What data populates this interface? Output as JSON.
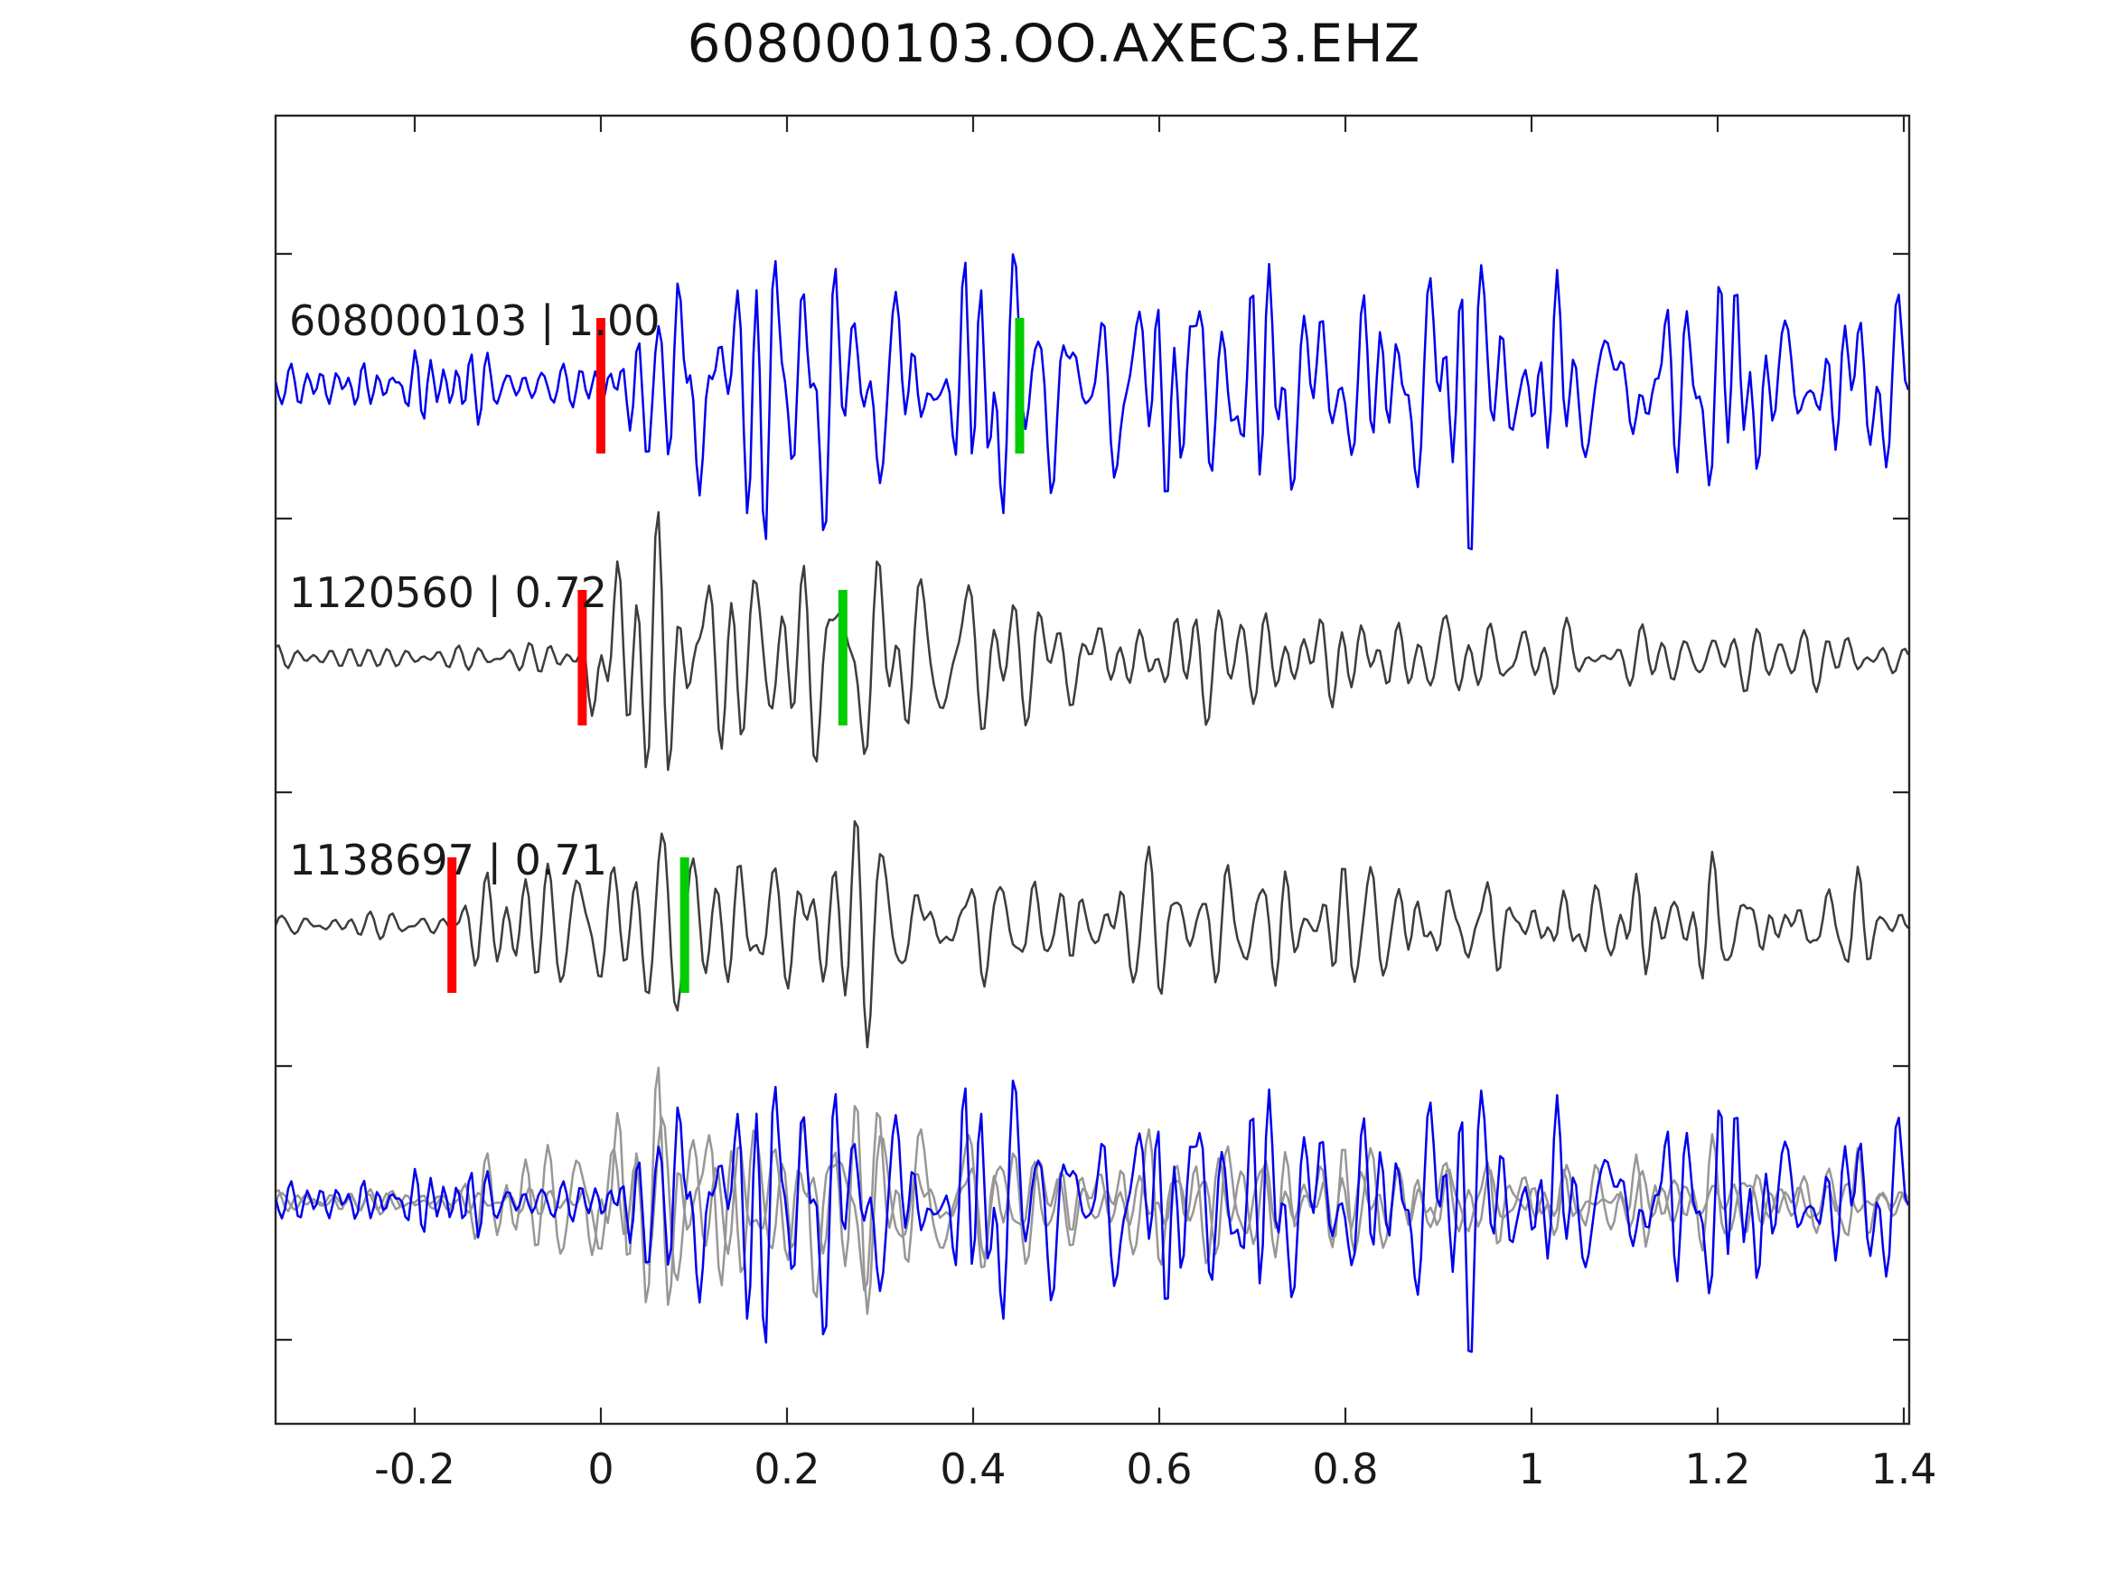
{
  "chart_data": {
    "type": "line",
    "kind": "seismic-waveform-template-match",
    "title": "608000103.OO.AXEC3.EHZ",
    "xlabel": "",
    "ylabel": "",
    "grid": false,
    "legend": "none",
    "xlim": [
      -0.3495,
      1.4058
    ],
    "x_tick_values": [
      -0.2,
      0,
      0.2,
      0.4,
      0.6,
      0.8,
      1,
      1.2,
      1.4
    ],
    "x_tick_labels": [
      "-0.2",
      "0",
      "0.2",
      "0.4",
      "0.6",
      "0.8",
      "1",
      "1.2",
      "1.4"
    ],
    "y_tick_labels": [],
    "colors": {
      "template_blue": "#0000ee",
      "match_gray": "#3d3d3d",
      "overlay_gray": "#979797",
      "pick_red": "#ff0000",
      "pick_green": "#00cc00",
      "axis": "#262626",
      "text": "#1a1a1a"
    },
    "traces": [
      {
        "row": 0,
        "id": "608000103",
        "similarity": "1.00",
        "label": "608000103 | 1.00",
        "color_key": "template_blue",
        "picks": [
          {
            "color_key": "pick_red",
            "t": 0.0
          },
          {
            "color_key": "pick_green",
            "t": 0.45
          }
        ],
        "synth": {
          "seed": 7,
          "dom_freq": 34,
          "pre_amp": 36,
          "burst_amp": 150,
          "onset": 0.0,
          "decay_tau": 1.5,
          "coda_amp": 90
        }
      },
      {
        "row": 1,
        "id": "1120560",
        "similarity": "0.72",
        "label": "1120560 | 0.72",
        "color_key": "match_gray",
        "picks": [
          {
            "color_key": "pick_red",
            "t": -0.02
          },
          {
            "color_key": "pick_green",
            "t": 0.26
          }
        ],
        "synth": {
          "seed": 5,
          "dom_freq": 29,
          "pre_amp": 18,
          "burst_amp": 158,
          "onset": -0.022,
          "decay_tau": 0.45,
          "coda_amp": 26
        }
      },
      {
        "row": 2,
        "id": "1138697",
        "similarity": "0.71",
        "label": "1138697 | 0.71",
        "color_key": "match_gray",
        "picks": [
          {
            "color_key": "pick_red",
            "t": -0.16
          },
          {
            "color_key": "pick_green",
            "t": 0.09
          }
        ],
        "synth": {
          "seed": 9,
          "dom_freq": 30,
          "pre_amp": 22,
          "burst_amp": 158,
          "onset": -0.156,
          "decay_tau": 0.5,
          "coda_amp": 30
        }
      },
      {
        "row": 3,
        "id": "overlay",
        "label": "",
        "picks": [],
        "members": [
          {
            "trace": 1,
            "color_key": "overlay_gray"
          },
          {
            "trace": 2,
            "color_key": "overlay_gray"
          },
          {
            "trace": 0,
            "color_key": "template_blue"
          }
        ],
        "amp_scale": 0.92
      }
    ]
  }
}
